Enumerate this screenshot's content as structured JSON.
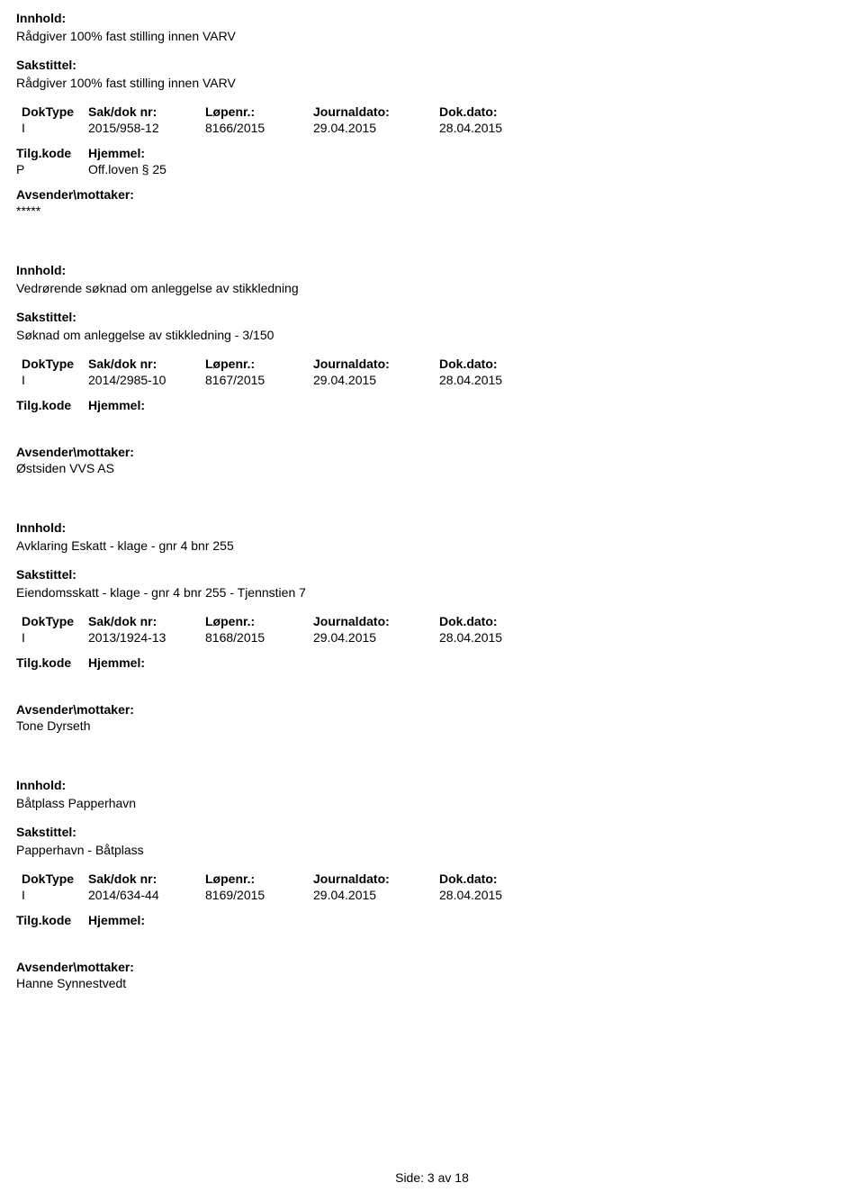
{
  "labels": {
    "innhold": "Innhold:",
    "sakstittel": "Sakstittel:",
    "doktype": "DokType",
    "sakdok": "Sak/dok nr:",
    "lopenr": "Løpenr.:",
    "journaldato": "Journaldato:",
    "dokdato": "Dok.dato:",
    "tilgkode": "Tilg.kode",
    "hjemmel": "Hjemmel:",
    "avsender": "Avsender\\mottaker:",
    "side": "Side:",
    "av": "av"
  },
  "entries": [
    {
      "innhold": "Rådgiver 100% fast stilling innen VARV",
      "sakstittel": "Rådgiver 100% fast stilling innen VARV",
      "doktype": "I",
      "sakdok": "2015/958-12",
      "lopenr": "8166/2015",
      "journaldato": "29.04.2015",
      "dokdato": "28.04.2015",
      "tilgkode_p": "P",
      "hjemmel_value": "Off.loven § 25",
      "avsender": "*****"
    },
    {
      "innhold": "Vedrørende søknad om anleggelse av stikkledning",
      "sakstittel": "Søknad om anleggelse av stikkledning - 3/150",
      "doktype": "I",
      "sakdok": "2014/2985-10",
      "lopenr": "8167/2015",
      "journaldato": "29.04.2015",
      "dokdato": "28.04.2015",
      "tilgkode_p": "",
      "hjemmel_value": "",
      "avsender": "Østsiden VVS AS"
    },
    {
      "innhold": "Avklaring Eskatt - klage - gnr 4 bnr 255",
      "sakstittel": "Eiendomsskatt - klage - gnr 4 bnr 255 - Tjennstien 7",
      "doktype": "I",
      "sakdok": "2013/1924-13",
      "lopenr": "8168/2015",
      "journaldato": "29.04.2015",
      "dokdato": "28.04.2015",
      "tilgkode_p": "",
      "hjemmel_value": "",
      "avsender": "Tone Dyrseth"
    },
    {
      "innhold": "Båtplass Papperhavn",
      "sakstittel": "Papperhavn - Båtplass",
      "doktype": "I",
      "sakdok": "2014/634-44",
      "lopenr": "8169/2015",
      "journaldato": "29.04.2015",
      "dokdato": "28.04.2015",
      "tilgkode_p": "",
      "hjemmel_value": "",
      "avsender": "Hanne Synnestvedt"
    }
  ],
  "page": {
    "current": "3",
    "total": "18"
  }
}
